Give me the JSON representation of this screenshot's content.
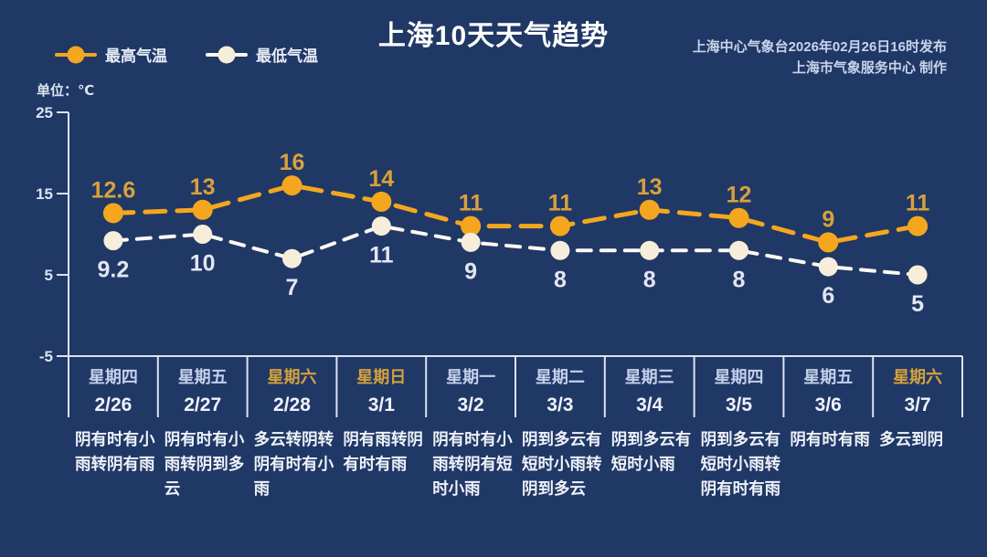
{
  "header": {
    "title": "上海10天天气趋势",
    "source_line1": "上海中心气象台2026年02月26日16时发布",
    "source_line2": "上海市气象服务中心 制作",
    "unit_label": "单位：℃"
  },
  "legend": {
    "high": {
      "label": "最高气温"
    },
    "low": {
      "label": "最低气温"
    }
  },
  "colors": {
    "background": "#203866",
    "high_series": "#F4A71E",
    "high_label": "#D9A13C",
    "low_line": "#FCFAF3",
    "low_marker": "#F6EEDA",
    "low_label": "#E2E6F1",
    "axis": "#DCE3F0",
    "weekday": "#C5D1EB",
    "weekend": "#D5A23C",
    "date": "#EFF2F9",
    "weather": "#EFF2F9",
    "title": "#FFFFFF",
    "source": "#C9D4EA"
  },
  "chart_data": {
    "type": "line",
    "title": "上海10天天气趋势",
    "ylabel": "℃",
    "ylim": [
      -5,
      25
    ],
    "yticks": [
      25,
      15,
      5,
      -5
    ],
    "grid": false,
    "legend_position": "top-left",
    "categories": [
      "2/26",
      "2/27",
      "2/28",
      "3/1",
      "3/2",
      "3/3",
      "3/4",
      "3/5",
      "3/6",
      "3/7"
    ],
    "weekdays": [
      "星期四",
      "星期五",
      "星期六",
      "星期日",
      "星期一",
      "星期二",
      "星期三",
      "星期四",
      "星期五",
      "星期六"
    ],
    "is_weekend": [
      false,
      false,
      true,
      true,
      false,
      false,
      false,
      false,
      false,
      true
    ],
    "series": [
      {
        "name": "最高气温",
        "values": [
          12.6,
          13,
          16,
          14,
          11,
          11,
          13,
          12,
          9,
          11
        ]
      },
      {
        "name": "最低气温",
        "values": [
          9.2,
          10,
          7,
          11,
          9,
          8,
          8,
          8,
          6,
          5
        ]
      }
    ],
    "weather_text": [
      "阴有时有小雨转阴有雨",
      "阴有时有小雨转阴到多云",
      "多云转阴转阴有时有小雨",
      "阴有雨转阴有时有雨",
      "阴有时有小雨转阴有短时小雨",
      "阴到多云有短时小雨转阴到多云",
      "阴到多云有短时小雨",
      "阴到多云有短时小雨转阴有时有雨",
      "阴有时有雨",
      "多云到阴"
    ]
  }
}
